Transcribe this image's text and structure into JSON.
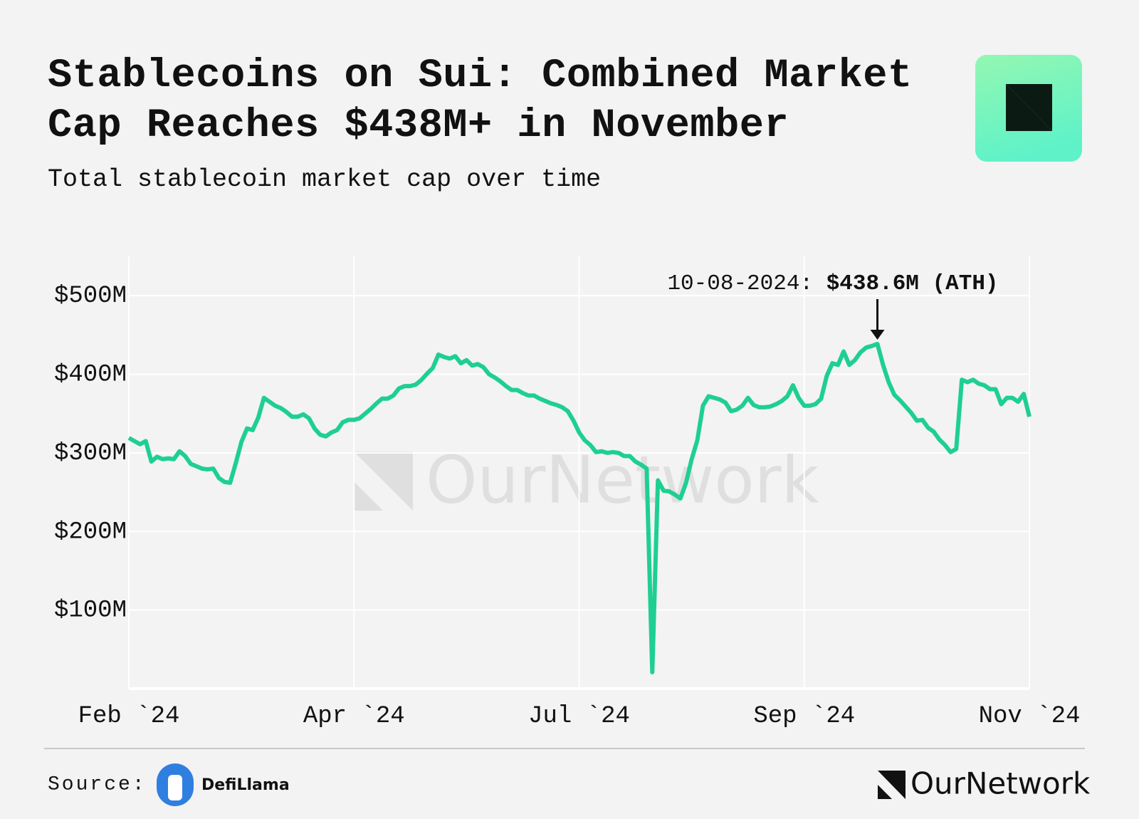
{
  "chart_data": {
    "type": "line",
    "title": "Stablecoins on Sui: Combined Market Cap Reaches $438M+ in November",
    "subtitle": "Total stablecoin market cap over time",
    "color": "#1fcf92",
    "grid": true,
    "categories": [
      "Feb `24",
      null,
      null,
      null,
      null,
      null,
      null,
      null,
      null,
      null,
      null,
      null,
      null,
      null,
      null,
      null,
      null,
      null,
      null,
      null,
      null,
      null,
      null,
      null,
      null,
      null,
      null,
      null,
      null,
      null,
      null,
      null,
      null,
      null,
      null,
      null,
      null,
      null,
      null,
      null,
      "Apr `24",
      null,
      null,
      null,
      null,
      null,
      null,
      null,
      null,
      null,
      null,
      null,
      null,
      null,
      null,
      null,
      null,
      null,
      null,
      null,
      null,
      null,
      null,
      null,
      null,
      null,
      null,
      null,
      null,
      null,
      null,
      null,
      null,
      null,
      null,
      null,
      null,
      null,
      null,
      null,
      "Jul `24",
      null,
      null,
      null,
      null,
      null,
      null,
      null,
      null,
      null,
      null,
      null,
      null,
      null,
      null,
      null,
      null,
      null,
      null,
      null,
      null,
      null,
      null,
      null,
      null,
      null,
      null,
      null,
      null,
      null,
      null,
      null,
      null,
      null,
      null,
      null,
      null,
      null,
      null,
      null,
      "Sep `24",
      null,
      null,
      null,
      null,
      null,
      null,
      null,
      null,
      null,
      null,
      null,
      null,
      null,
      null,
      null,
      null,
      null,
      null,
      null,
      null,
      null,
      null,
      null,
      null,
      null,
      null,
      null,
      null,
      null,
      null,
      null,
      null,
      null,
      null,
      null,
      null,
      null,
      null,
      null,
      "Nov `24"
    ],
    "values": [
      319,
      315,
      311,
      315,
      289,
      295,
      292,
      293,
      292,
      302,
      296,
      286,
      283,
      280,
      279,
      280,
      268,
      263,
      262,
      287,
      314,
      331,
      329,
      345,
      370,
      365,
      360,
      357,
      352,
      346,
      346,
      349,
      344,
      331,
      323,
      321,
      326,
      329,
      339,
      342,
      342,
      344,
      350,
      356,
      363,
      369,
      369,
      373,
      382,
      385,
      385,
      387,
      393,
      401,
      408,
      425,
      422,
      420,
      423,
      414,
      418,
      411,
      413,
      409,
      400,
      396,
      391,
      385,
      380,
      380,
      376,
      373,
      373,
      369,
      366,
      363,
      361,
      358,
      353,
      341,
      326,
      316,
      310,
      301,
      302,
      300,
      301,
      300,
      296,
      296,
      289,
      285,
      280,
      21,
      265,
      252,
      251,
      247,
      242,
      262,
      292,
      316,
      360,
      372,
      370,
      368,
      364,
      353,
      355,
      360,
      370,
      361,
      358,
      358,
      359,
      362,
      366,
      372,
      386,
      370,
      360,
      360,
      362,
      369,
      398,
      414,
      412,
      429,
      412,
      418,
      428,
      434,
      436,
      438.6,
      412,
      390,
      374,
      367,
      359,
      351,
      341,
      342,
      332,
      327,
      317,
      310,
      301,
      305,
      393,
      390,
      393,
      388,
      386,
      381,
      381,
      362,
      370,
      370,
      365,
      375,
      346
    ],
    "ylim": [
      0,
      550
    ],
    "yticks": [
      {
        "value": 100,
        "label": "$100M"
      },
      {
        "value": 200,
        "label": "$200M"
      },
      {
        "value": 300,
        "label": "$300M"
      },
      {
        "value": 400,
        "label": "$400M"
      },
      {
        "value": 500,
        "label": "$500M"
      }
    ],
    "annotation": {
      "label": "10-08-2024:",
      "value": 438.6,
      "value_label": "$438.6M (ATH)"
    },
    "watermark": "OurNetwork"
  },
  "footer": {
    "source_label": "Source:",
    "source": "DefiLlama",
    "brand": "OurNetwork"
  }
}
